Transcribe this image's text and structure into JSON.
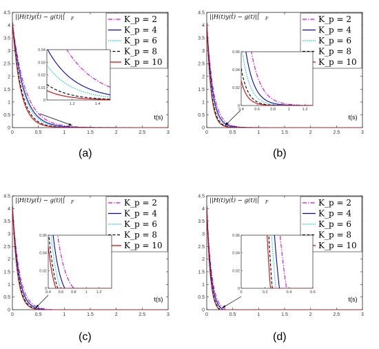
{
  "figure": {
    "captions": [
      "(a)",
      "(b)",
      "(c)",
      "(d)"
    ],
    "ylabel_math": "||H(t)y(t) − g(t)||_F",
    "legend_prefix": "K",
    "legend_sub": "p"
  },
  "colors": {
    "kp2": "#e000e0",
    "kp4": "#0000cc",
    "kp6": "#00c8c8",
    "kp8": "#000000",
    "kp10": "#e00000"
  },
  "chart_data": [
    {
      "type": "line",
      "panel": "(a)",
      "xlabel": "t(s)",
      "xlim": [
        0,
        3
      ],
      "ylim": [
        0,
        4.5
      ],
      "xticks": [
        0,
        0.5,
        1,
        1.5,
        2,
        2.5,
        3
      ],
      "xtick_labels": [
        "0",
        "0.5",
        "1",
        "1.5",
        "2",
        "2.5",
        "3"
      ],
      "yticks": [
        0,
        0.5,
        1,
        1.5,
        2,
        2.5,
        3,
        3.5,
        4,
        4.5
      ],
      "ytick_labels": [
        "0",
        "0.5",
        "1",
        "1.5",
        "2",
        "2.5",
        "3",
        "3.5",
        "4",
        "4.5"
      ],
      "y0": 4.1,
      "series": [
        {
          "name": "K_p = 2",
          "kp": 2,
          "decay": 4.0
        },
        {
          "name": "K_p = 4",
          "kp": 4,
          "decay": 4.6
        },
        {
          "name": "K_p = 6",
          "kp": 6,
          "decay": 5.0
        },
        {
          "name": "K_p = 8",
          "kp": 8,
          "decay": 5.8
        },
        {
          "name": "K_p = 10",
          "kp": 10,
          "decay": 6.3
        }
      ],
      "inset": {
        "xlim": [
          1,
          1.5
        ],
        "ylim": [
          0,
          0.04
        ],
        "xticks": [
          1.2,
          1.4
        ],
        "xtick_labels": [
          "1.2",
          "1.4"
        ],
        "yticks": [
          0,
          0.01,
          0.02,
          0.03,
          0.04
        ],
        "ytick_labels": [
          "0",
          "0.01",
          "0.02",
          "0.03",
          "0.04"
        ]
      },
      "arrow_target": [
        1.15,
        0.03
      ]
    },
    {
      "type": "line",
      "panel": "(b)",
      "xlabel": "t(s)",
      "xlim": [
        0,
        3
      ],
      "ylim": [
        0,
        4.5
      ],
      "xticks": [
        0,
        0.5,
        1,
        1.5,
        2,
        2.5,
        3
      ],
      "xtick_labels": [
        "0",
        "0.5",
        "1",
        "1.5",
        "2",
        "2.5",
        "3"
      ],
      "yticks": [
        0,
        0.5,
        1,
        1.5,
        2,
        2.5,
        3,
        3.5,
        4,
        4.5
      ],
      "ytick_labels": [
        "0",
        "0.5",
        "1",
        "1.5",
        "2",
        "2.5",
        "3",
        "3.5",
        "4",
        "4.5"
      ],
      "y0": 4.1,
      "series": [
        {
          "name": "K_p = 2",
          "kp": 2,
          "decay": 8.0
        },
        {
          "name": "K_p = 4",
          "kp": 4,
          "decay": 9.2
        },
        {
          "name": "K_p = 6",
          "kp": 6,
          "decay": 10.2
        },
        {
          "name": "K_p = 8",
          "kp": 8,
          "decay": 11.5
        },
        {
          "name": "K_p = 10",
          "kp": 10,
          "decay": 12.5
        }
      ],
      "inset": {
        "xlim": [
          0.4,
          1.3
        ],
        "ylim": [
          0,
          0.06
        ],
        "xticks": [
          0.4,
          0.6,
          0.8,
          1,
          1.2
        ],
        "xtick_labels": [
          "0.4",
          "0.6",
          "0.8",
          "1",
          "1.2"
        ],
        "yticks": [
          0,
          0.02,
          0.04,
          0.06
        ],
        "ytick_labels": [
          "0",
          "0.02",
          "0.04",
          "0.06"
        ]
      },
      "arrow_target": [
        0.35,
        0.02
      ]
    },
    {
      "type": "line",
      "panel": "(c)",
      "xlabel": "t(s)",
      "xlim": [
        0,
        3
      ],
      "ylim": [
        0,
        4.5
      ],
      "xticks": [
        0,
        0.5,
        1,
        1.5,
        2,
        2.5,
        3
      ],
      "xtick_labels": [
        "0",
        "0.5",
        "1",
        "1.5",
        "2",
        "2.5",
        "3"
      ],
      "yticks": [
        0,
        0.5,
        1,
        1.5,
        2,
        2.5,
        3,
        3.5,
        4,
        4.5
      ],
      "ytick_labels": [
        "0",
        "0.5",
        "1",
        "1.5",
        "2",
        "2.5",
        "3",
        "3.5",
        "4",
        "4.5"
      ],
      "y0": 4.1,
      "series": [
        {
          "name": "K_p = 2",
          "kp": 2,
          "decay": 7.5,
          "end": 0.8
        },
        {
          "name": "K_p = 4",
          "kp": 4,
          "decay": 8.5,
          "end": 0.66
        },
        {
          "name": "K_p = 6",
          "kp": 6,
          "decay": 9.0,
          "end": 0.59
        },
        {
          "name": "K_p = 8",
          "kp": 8,
          "decay": 9.8,
          "end": 0.55
        },
        {
          "name": "K_p = 10",
          "kp": 10,
          "decay": 10.5,
          "end": 0.52
        }
      ],
      "inset": {
        "xlim": [
          0.4,
          1.4
        ],
        "ylim": [
          0,
          0.06
        ],
        "xticks": [
          0.4,
          0.6,
          0.8,
          1,
          1.2
        ],
        "xtick_labels": [
          "0.4",
          "0.6",
          "0.8",
          "1",
          "1.2"
        ],
        "yticks": [
          0,
          0.02,
          0.04,
          0.06
        ],
        "ytick_labels": [
          "0",
          "0.02",
          "0.04",
          "0.06"
        ]
      },
      "arrow_target": [
        0.45,
        0.02
      ]
    },
    {
      "type": "line",
      "panel": "(d)",
      "xlabel": "t(s)",
      "xlim": [
        0,
        3
      ],
      "ylim": [
        0,
        4.5
      ],
      "xticks": [
        0,
        0.5,
        1,
        1.5,
        2,
        2.5,
        3
      ],
      "xtick_labels": [
        "0",
        "0.5",
        "1",
        "1.5",
        "2",
        "2.5",
        "3"
      ],
      "yticks": [
        0,
        0.5,
        1,
        1.5,
        2,
        2.5,
        3,
        3.5,
        4,
        4.5
      ],
      "ytick_labels": [
        "0",
        "0.5",
        "1",
        "1.5",
        "2",
        "2.5",
        "3",
        "3.5",
        "4",
        "4.5"
      ],
      "y0": 4.1,
      "series": [
        {
          "name": "K_p = 2",
          "kp": 2,
          "decay": 11.0,
          "end": 0.38
        },
        {
          "name": "K_p = 4",
          "kp": 4,
          "decay": 12.5,
          "end": 0.32
        },
        {
          "name": "K_p = 6",
          "kp": 6,
          "decay": 13.5,
          "end": 0.29
        },
        {
          "name": "K_p = 8",
          "kp": 8,
          "decay": 14.5,
          "end": 0.26
        },
        {
          "name": "K_p = 10",
          "kp": 10,
          "decay": 15.5,
          "end": 0.245
        }
      ],
      "inset": {
        "xlim": [
          0,
          0.6
        ],
        "ylim": [
          0,
          0.06
        ],
        "xticks": [
          0,
          0.2,
          0.4,
          0.6
        ],
        "xtick_labels": [
          "0",
          "0.2",
          "0.4",
          "0.6"
        ],
        "yticks": [
          0,
          0.02,
          0.04,
          0.06
        ],
        "ytick_labels": [
          "0",
          "0.02",
          "0.04",
          "0.06"
        ]
      },
      "arrow_target": [
        0.3,
        0.02
      ]
    }
  ]
}
